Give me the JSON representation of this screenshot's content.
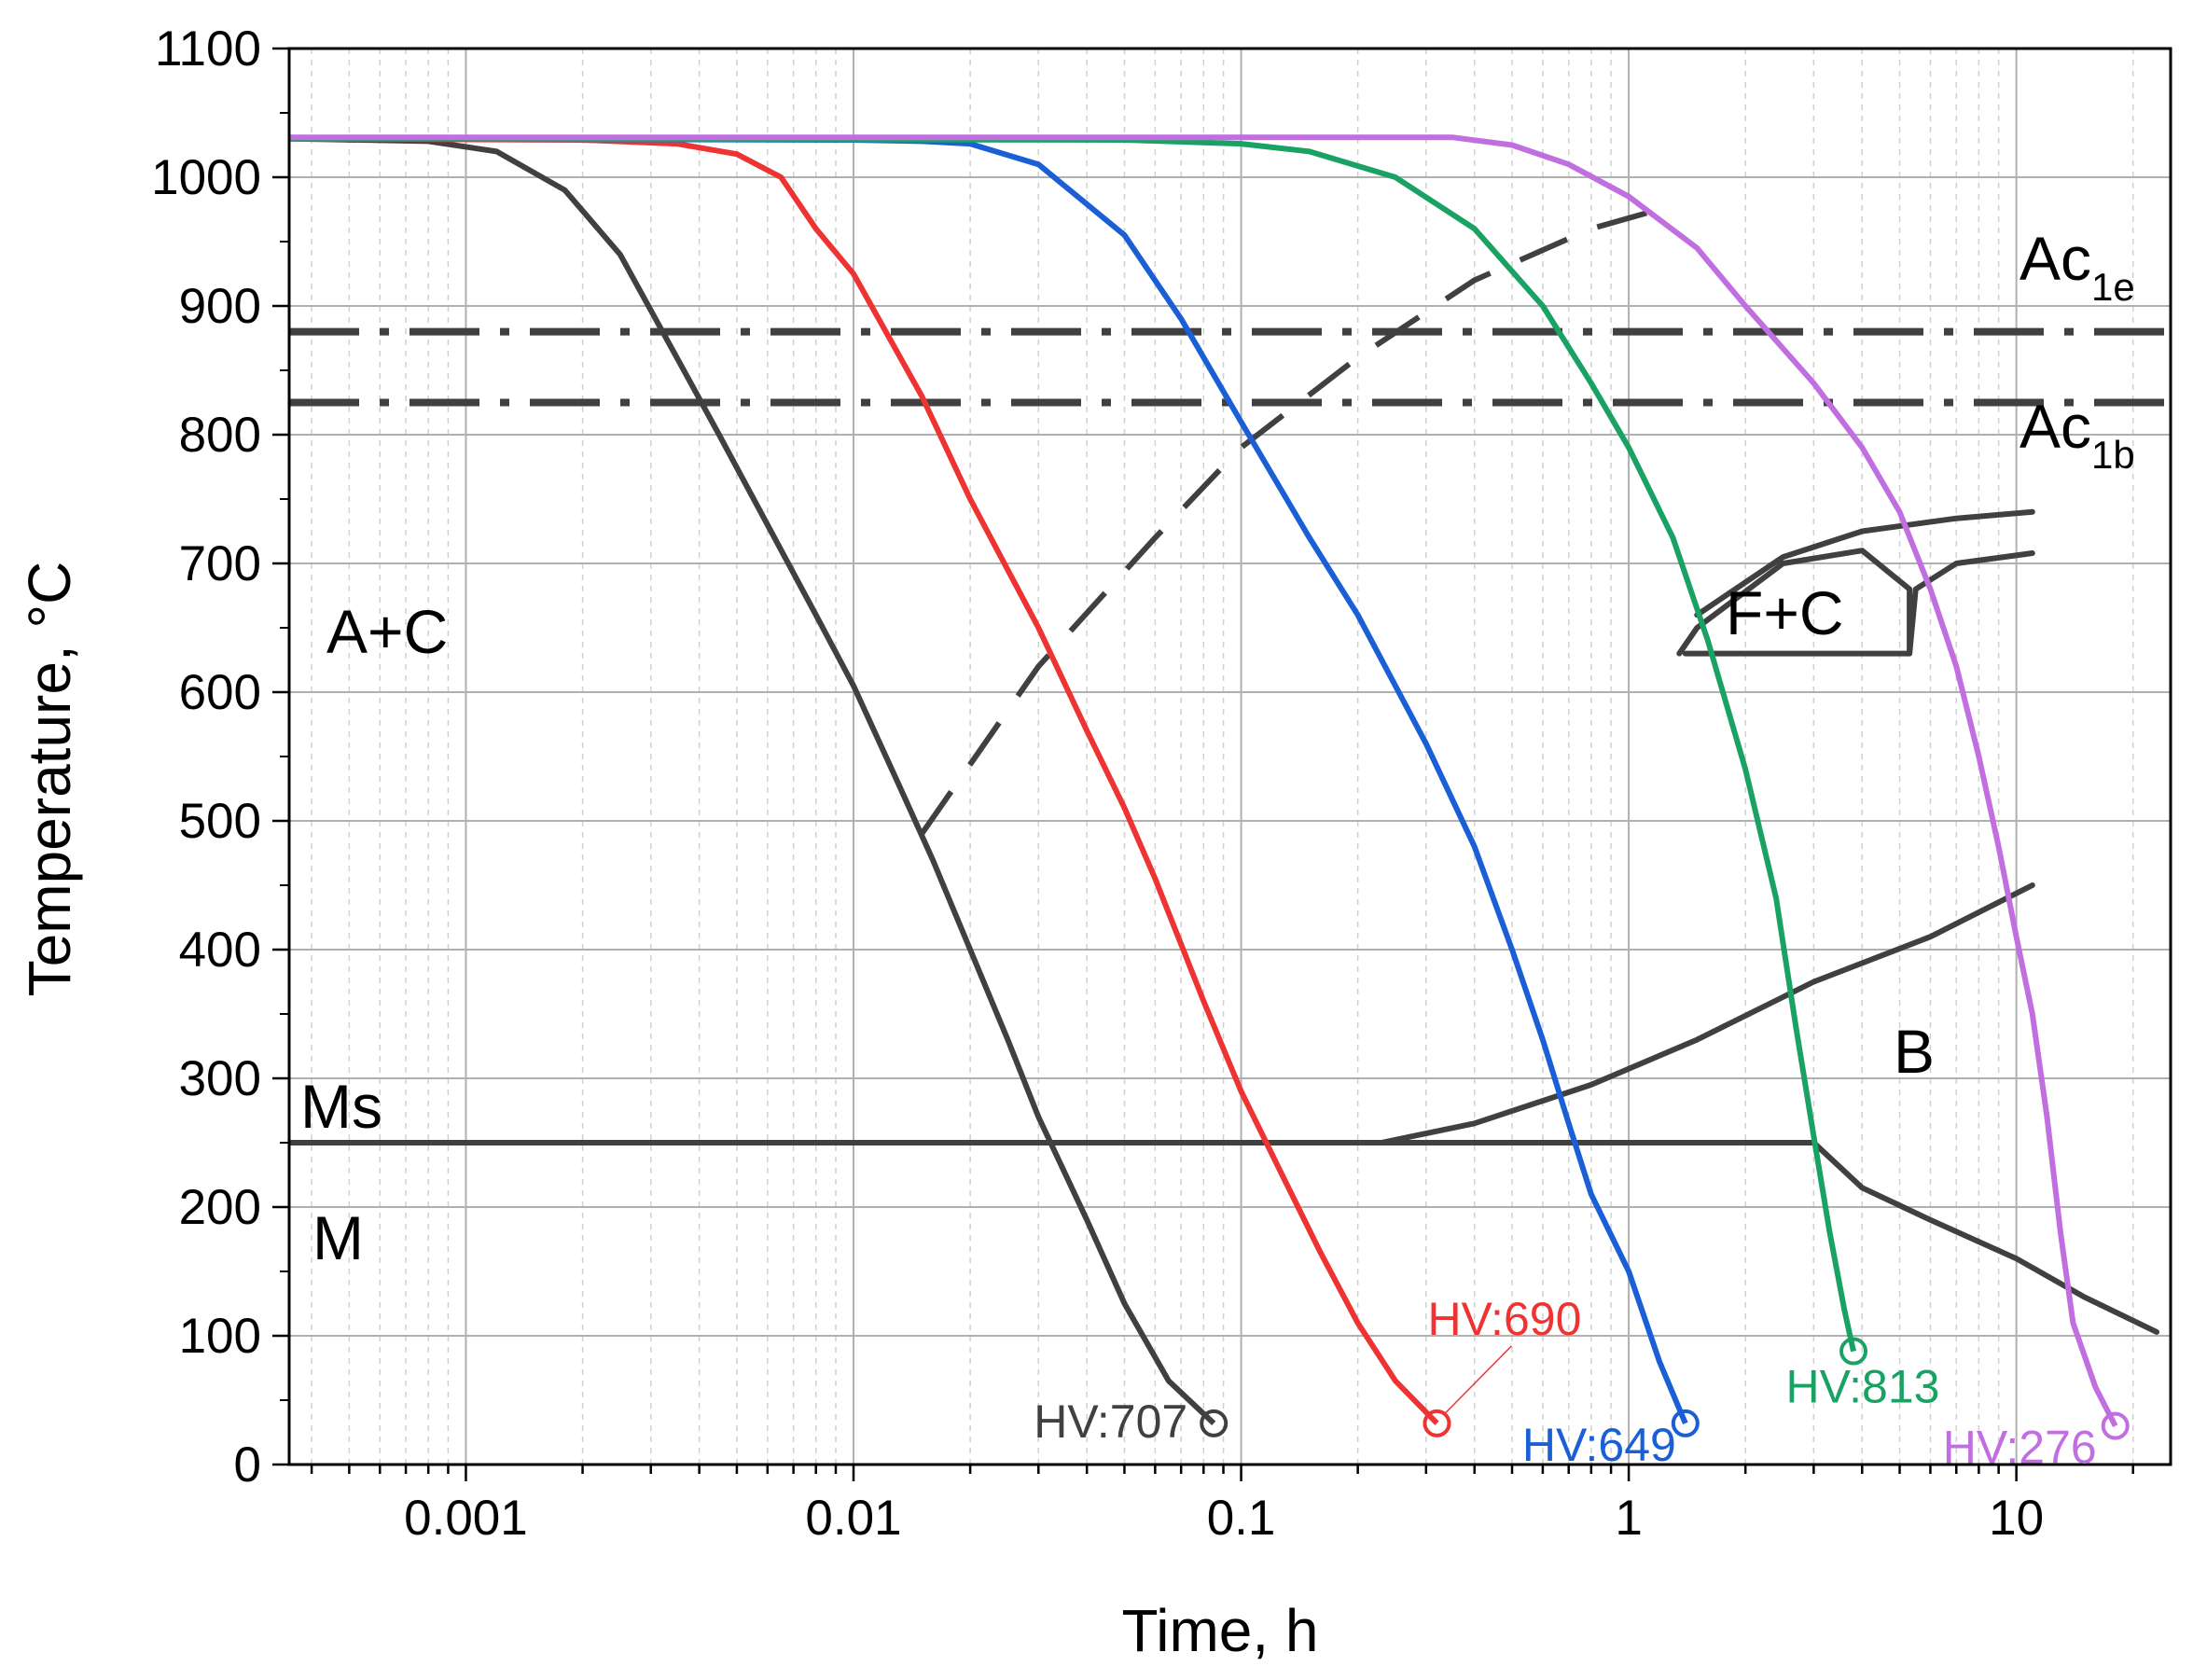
{
  "chart_data": {
    "type": "line",
    "xlabel": "Time, h",
    "ylabel": "Temperature, °C",
    "x_scale": "log",
    "xlim": [
      0.00035,
      25
    ],
    "ylim": [
      0,
      1100
    ],
    "x_ticks": [
      {
        "value": 0.001,
        "label": "0.001"
      },
      {
        "value": 0.01,
        "label": "0.01"
      },
      {
        "value": 0.1,
        "label": "0.1"
      },
      {
        "value": 1,
        "label": "1"
      },
      {
        "value": 10,
        "label": "10"
      }
    ],
    "y_ticks": [
      0,
      100,
      200,
      300,
      400,
      500,
      600,
      700,
      800,
      900,
      1000,
      1100
    ],
    "grid": true,
    "series": [
      {
        "color": "#404040",
        "hv_label": "HV:707",
        "points": [
          [
            0.00035,
            1030
          ],
          [
            0.0008,
            1028
          ],
          [
            0.0012,
            1020
          ],
          [
            0.0018,
            990
          ],
          [
            0.0025,
            940
          ],
          [
            0.0035,
            860
          ],
          [
            0.0045,
            800
          ],
          [
            0.006,
            730
          ],
          [
            0.008,
            660
          ],
          [
            0.01,
            605
          ],
          [
            0.013,
            530
          ],
          [
            0.016,
            470
          ],
          [
            0.02,
            400
          ],
          [
            0.025,
            330
          ],
          [
            0.03,
            270
          ],
          [
            0.04,
            190
          ],
          [
            0.05,
            125
          ],
          [
            0.065,
            65
          ],
          [
            0.085,
            32
          ]
        ]
      },
      {
        "color": "#ee3333",
        "hv_label": "HV:690",
        "points": [
          [
            0.00035,
            1030
          ],
          [
            0.002,
            1029
          ],
          [
            0.0035,
            1026
          ],
          [
            0.005,
            1018
          ],
          [
            0.0065,
            1000
          ],
          [
            0.008,
            960
          ],
          [
            0.01,
            925
          ],
          [
            0.015,
            830
          ],
          [
            0.02,
            750
          ],
          [
            0.03,
            650
          ],
          [
            0.04,
            570
          ],
          [
            0.05,
            510
          ],
          [
            0.06,
            455
          ],
          [
            0.08,
            360
          ],
          [
            0.1,
            290
          ],
          [
            0.13,
            220
          ],
          [
            0.16,
            165
          ],
          [
            0.2,
            110
          ],
          [
            0.25,
            65
          ],
          [
            0.32,
            32
          ]
        ]
      },
      {
        "color": "#1a5fd6",
        "hv_label": "HV:649",
        "points": [
          [
            0.00035,
            1030
          ],
          [
            0.01,
            1029
          ],
          [
            0.015,
            1028
          ],
          [
            0.02,
            1026
          ],
          [
            0.03,
            1010
          ],
          [
            0.05,
            955
          ],
          [
            0.07,
            890
          ],
          [
            0.1,
            810
          ],
          [
            0.15,
            720
          ],
          [
            0.2,
            660
          ],
          [
            0.3,
            560
          ],
          [
            0.4,
            480
          ],
          [
            0.5,
            400
          ],
          [
            0.6,
            330
          ],
          [
            0.7,
            265
          ],
          [
            0.8,
            210
          ],
          [
            1,
            150
          ],
          [
            1.2,
            80
          ],
          [
            1.4,
            32
          ]
        ]
      },
      {
        "color": "#1aa265",
        "hv_label": "HV:813",
        "points": [
          [
            0.00035,
            1030
          ],
          [
            0.05,
            1029
          ],
          [
            0.1,
            1026
          ],
          [
            0.15,
            1020
          ],
          [
            0.25,
            1000
          ],
          [
            0.4,
            960
          ],
          [
            0.6,
            900
          ],
          [
            0.8,
            840
          ],
          [
            1,
            790
          ],
          [
            1.3,
            720
          ],
          [
            1.6,
            640
          ],
          [
            2,
            540
          ],
          [
            2.4,
            440
          ],
          [
            2.7,
            340
          ],
          [
            3,
            255
          ],
          [
            3.3,
            180
          ],
          [
            3.6,
            120
          ],
          [
            3.8,
            88
          ]
        ]
      },
      {
        "color": "#c06ee0",
        "hv_label": "HV:276",
        "points": [
          [
            0.00035,
            1031
          ],
          [
            0.2,
            1031
          ],
          [
            0.35,
            1031
          ],
          [
            0.5,
            1025
          ],
          [
            0.7,
            1010
          ],
          [
            1,
            985
          ],
          [
            1.5,
            945
          ],
          [
            2,
            900
          ],
          [
            3,
            840
          ],
          [
            4,
            790
          ],
          [
            5,
            740
          ],
          [
            6,
            680
          ],
          [
            7,
            620
          ],
          [
            8,
            550
          ],
          [
            9,
            480
          ],
          [
            10,
            410
          ],
          [
            11,
            350
          ],
          [
            12,
            270
          ],
          [
            13,
            180
          ],
          [
            14,
            110
          ],
          [
            16,
            60
          ],
          [
            18,
            30
          ]
        ]
      }
    ],
    "hv_labels": [
      "HV:707",
      "HV:690",
      "HV:649",
      "HV:813",
      "HV:276"
    ],
    "phase_lines": {
      "ac1e": {
        "label": "Ac",
        "subscript": "1e",
        "y": 880
      },
      "ac1b": {
        "label": "Ac",
        "subscript": "1b",
        "y": 825
      },
      "ms": {
        "label": "Ms",
        "y": 250
      },
      "dashed_boundary": [
        [
          0.015,
          490
        ],
        [
          0.03,
          620
        ],
        [
          0.06,
          720
        ],
        [
          0.1,
          790
        ],
        [
          0.2,
          860
        ],
        [
          0.4,
          920
        ],
        [
          0.8,
          960
        ],
        [
          1.2,
          975
        ]
      ],
      "bainite_upper": [
        [
          0.23,
          250
        ],
        [
          0.4,
          265
        ],
        [
          0.8,
          295
        ],
        [
          1.5,
          330
        ],
        [
          3,
          375
        ],
        [
          6,
          410
        ],
        [
          11,
          450
        ]
      ],
      "bainite_lower": [
        [
          3,
          250
        ],
        [
          4,
          215
        ],
        [
          6,
          190
        ],
        [
          10,
          160
        ],
        [
          15,
          130
        ],
        [
          23,
          103
        ]
      ],
      "fc_upper": [
        [
          1.5,
          660
        ],
        [
          2.5,
          705
        ],
        [
          4,
          725
        ],
        [
          7,
          735
        ],
        [
          11,
          740
        ]
      ],
      "fc_lower": [
        [
          1.35,
          630
        ],
        [
          1.5,
          650
        ],
        [
          2.5,
          700
        ],
        [
          4,
          710
        ],
        [
          5.3,
          680
        ],
        [
          5.3,
          630
        ],
        [
          1.4,
          630
        ]
      ],
      "fc_right_arc": [
        [
          5.3,
          630
        ],
        [
          5.5,
          680
        ],
        [
          7,
          700
        ],
        [
          11,
          708
        ]
      ]
    },
    "regions": {
      "ac": "A+C",
      "fc": "F+C",
      "bainite": "B",
      "martensite": "M"
    }
  }
}
